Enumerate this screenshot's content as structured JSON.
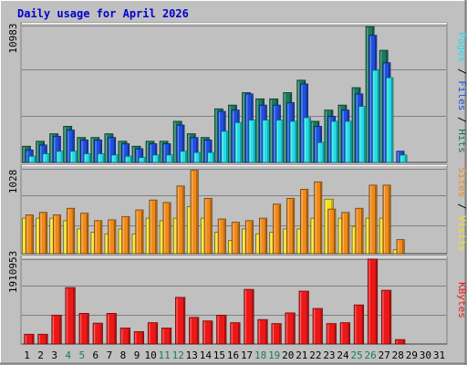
{
  "chart_data": {
    "title": "Daily usage for April 2026",
    "x": [
      "1",
      "2",
      "3",
      "4",
      "5",
      "6",
      "7",
      "8",
      "9",
      "10",
      "11",
      "12",
      "13",
      "14",
      "15",
      "16",
      "17",
      "18",
      "19",
      "20",
      "21",
      "22",
      "23",
      "24",
      "25",
      "26",
      "27",
      "28",
      "29",
      "30",
      "31"
    ],
    "weekend_days": [
      4,
      5,
      11,
      12,
      18,
      19,
      25,
      26
    ],
    "panels": [
      {
        "type": "bar",
        "max_label": "10983",
        "ylim": [
          0,
          10983
        ],
        "legend": [
          "Pages",
          "Files",
          "Hits"
        ],
        "series": [
          {
            "name": "Hits",
            "color": "#1a7a5a",
            "values": [
              1300,
              1700,
              2300,
              2900,
              2000,
              2000,
              2300,
              1700,
              1300,
              1700,
              1700,
              3300,
              2300,
              2000,
              4300,
              4600,
              5600,
              5100,
              5100,
              5600,
              6600,
              3300,
              4200,
              4600,
              6000,
              10900,
              9000,
              0,
              0,
              0,
              0
            ]
          },
          {
            "name": "Files",
            "color": "#1e50e0",
            "values": [
              1000,
              1400,
              2100,
              2600,
              1800,
              1800,
              2000,
              1500,
              1100,
              1500,
              1500,
              3000,
              2000,
              1800,
              4100,
              4200,
              5500,
              4600,
              4600,
              4800,
              6300,
              2900,
              3700,
              4200,
              5500,
              10200,
              8000,
              900,
              0,
              0,
              0
            ]
          },
          {
            "name": "Pages",
            "color": "#22dde8",
            "values": [
              500,
              700,
              900,
              900,
              700,
              700,
              600,
              500,
              400,
              600,
              600,
              900,
              800,
              800,
              2500,
              3200,
              3400,
              3400,
              3400,
              3300,
              3600,
              1600,
              3300,
              3300,
              4500,
              7400,
              6800,
              600,
              0,
              0,
              0
            ]
          }
        ]
      },
      {
        "type": "bar",
        "max_label": "1028",
        "ylim": [
          0,
          1028
        ],
        "legend": [
          "Sites",
          "Visits"
        ],
        "series": [
          {
            "name": "Visits",
            "color": "#f5e020",
            "values": [
              430,
              430,
              430,
              400,
              300,
              260,
              240,
              300,
              240,
              430,
              400,
              430,
              570,
              430,
              260,
              160,
              300,
              240,
              260,
              300,
              300,
              430,
              660,
              430,
              330,
              430,
              430,
              50,
              0,
              0,
              0
            ]
          },
          {
            "name": "Sites",
            "color": "#f08a18",
            "values": [
              470,
              500,
              470,
              550,
              490,
              400,
              410,
              450,
              530,
              650,
              620,
              820,
              1010,
              670,
              420,
              380,
              400,
              430,
              600,
              670,
              780,
              870,
              540,
              500,
              550,
              830,
              830,
              170,
              0,
              0,
              0
            ]
          }
        ]
      },
      {
        "type": "bar",
        "max_label": "1910953",
        "ylim": [
          0,
          1910953
        ],
        "legend": [
          "KBytes"
        ],
        "series": [
          {
            "name": "KBytes",
            "color": "#ec1818",
            "values": [
              220000,
              220000,
              650000,
              1270000,
              690000,
              470000,
              690000,
              360000,
              280000,
              480000,
              360000,
              1050000,
              600000,
              520000,
              650000,
              480000,
              1230000,
              550000,
              460000,
              700000,
              1190000,
              800000,
              460000,
              480000,
              880000,
              1910000,
              1210000,
              100000,
              0,
              0,
              0
            ]
          }
        ]
      }
    ]
  }
}
